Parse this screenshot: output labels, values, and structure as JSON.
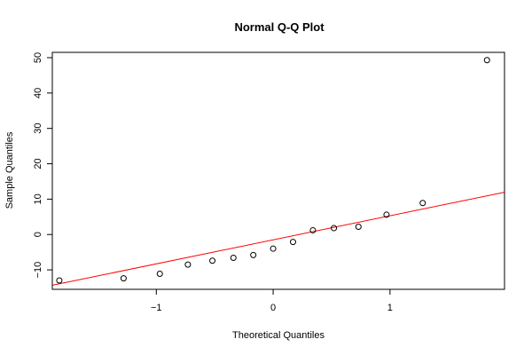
{
  "chart_data": {
    "type": "scatter",
    "title": "Normal Q-Q Plot",
    "xlabel": "Theoretical Quantiles",
    "ylabel": "Sample Quantiles",
    "xlim": [
      -1.89,
      1.98
    ],
    "ylim": [
      -15.5,
      51.5
    ],
    "x_ticks": [
      -1,
      0,
      1
    ],
    "x_tick_labels": [
      "−1",
      "0",
      "1"
    ],
    "y_ticks": [
      -10,
      0,
      10,
      20,
      30,
      40,
      50
    ],
    "y_tick_labels": [
      "−10",
      "0",
      "10",
      "20",
      "30",
      "40",
      "50"
    ],
    "grid": false,
    "legend": "none",
    "point_color": "#000000",
    "line_color": "#ff0000",
    "points": [
      {
        "x": -1.83,
        "y": -13.0
      },
      {
        "x": -1.28,
        "y": -12.4
      },
      {
        "x": -0.97,
        "y": -11.1
      },
      {
        "x": -0.73,
        "y": -8.5
      },
      {
        "x": -0.52,
        "y": -7.4
      },
      {
        "x": -0.34,
        "y": -6.6
      },
      {
        "x": -0.17,
        "y": -5.8
      },
      {
        "x": 0.0,
        "y": -4.0
      },
      {
        "x": 0.17,
        "y": -2.1
      },
      {
        "x": 0.34,
        "y": 1.2
      },
      {
        "x": 0.52,
        "y": 1.8
      },
      {
        "x": 0.73,
        "y": 2.2
      },
      {
        "x": 0.97,
        "y": 5.6
      },
      {
        "x": 1.28,
        "y": 8.9
      },
      {
        "x": 1.83,
        "y": 49.3
      }
    ],
    "reference_line": {
      "intercept": -1.5,
      "slope": 6.8
    }
  }
}
